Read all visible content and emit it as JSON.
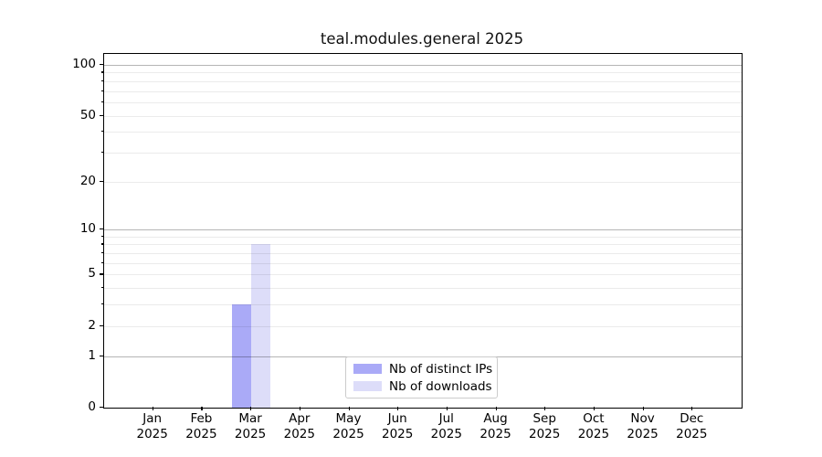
{
  "figure": {
    "title": "teal.modules.general 2025"
  },
  "chart_data": {
    "type": "bar",
    "title": "teal.modules.general 2025",
    "categories": [
      "Jan 2025",
      "Feb 2025",
      "Mar 2025",
      "Apr 2025",
      "May 2025",
      "Jun 2025",
      "Jul 2025",
      "Aug 2025",
      "Sep 2025",
      "Oct 2025",
      "Nov 2025",
      "Dec 2025"
    ],
    "series": [
      {
        "name": "Nb of distinct IPs",
        "color": "#aaaaf7",
        "values": [
          0,
          0,
          3,
          0,
          0,
          0,
          0,
          0,
          0,
          0,
          0,
          0
        ]
      },
      {
        "name": "Nb of downloads",
        "color": "#ddddf9",
        "values": [
          0,
          0,
          8,
          0,
          0,
          0,
          0,
          0,
          0,
          0,
          0,
          0
        ]
      }
    ],
    "xlabel": "",
    "ylabel": "",
    "yscale": "log1p",
    "yticks": [
      0,
      1,
      2,
      5,
      10,
      20,
      50,
      100
    ],
    "ylim": [
      0,
      116
    ],
    "grid": "horizontal",
    "legend_position": "lower center"
  },
  "style": {
    "background": "#ffffff",
    "spine_color": "#000000",
    "grid_major_color": "#b6b6b6",
    "grid_minor_color": "#ebebeb",
    "legend_border_color": "#cccccc"
  }
}
